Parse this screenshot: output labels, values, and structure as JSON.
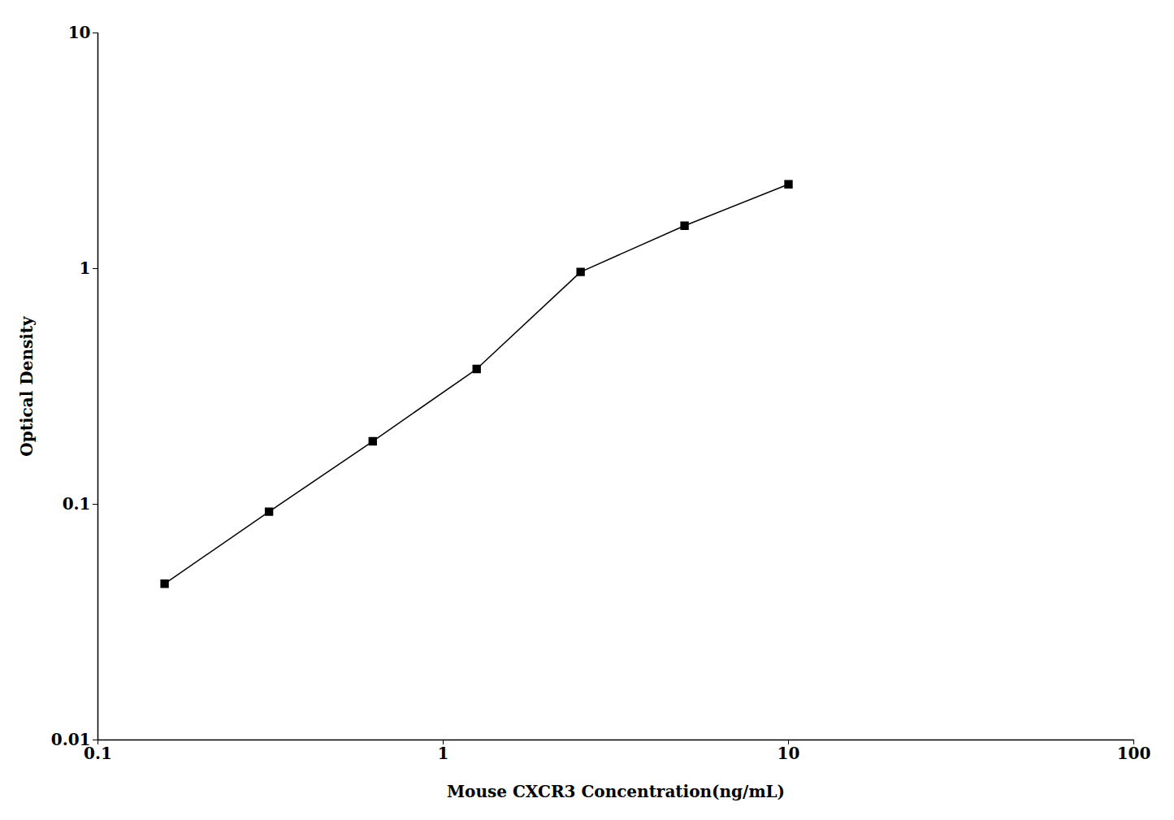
{
  "chart_data": {
    "type": "line",
    "xlabel": "Mouse CXCR3 Concentration(ng/mL)",
    "ylabel": "Optical Density",
    "x": [
      0.156,
      0.313,
      0.625,
      1.25,
      2.5,
      5.0,
      10.0
    ],
    "values": [
      0.046,
      0.093,
      0.185,
      0.375,
      0.968,
      1.52,
      2.28
    ],
    "color": "#000000",
    "marker": "square",
    "xlim": [
      0.1,
      100
    ],
    "ylim": [
      0.01,
      10
    ],
    "xticks": [
      0.1,
      1,
      10,
      100
    ],
    "yticks": [
      0.01,
      0.1,
      1,
      10
    ],
    "log": true,
    "grid": false
  }
}
